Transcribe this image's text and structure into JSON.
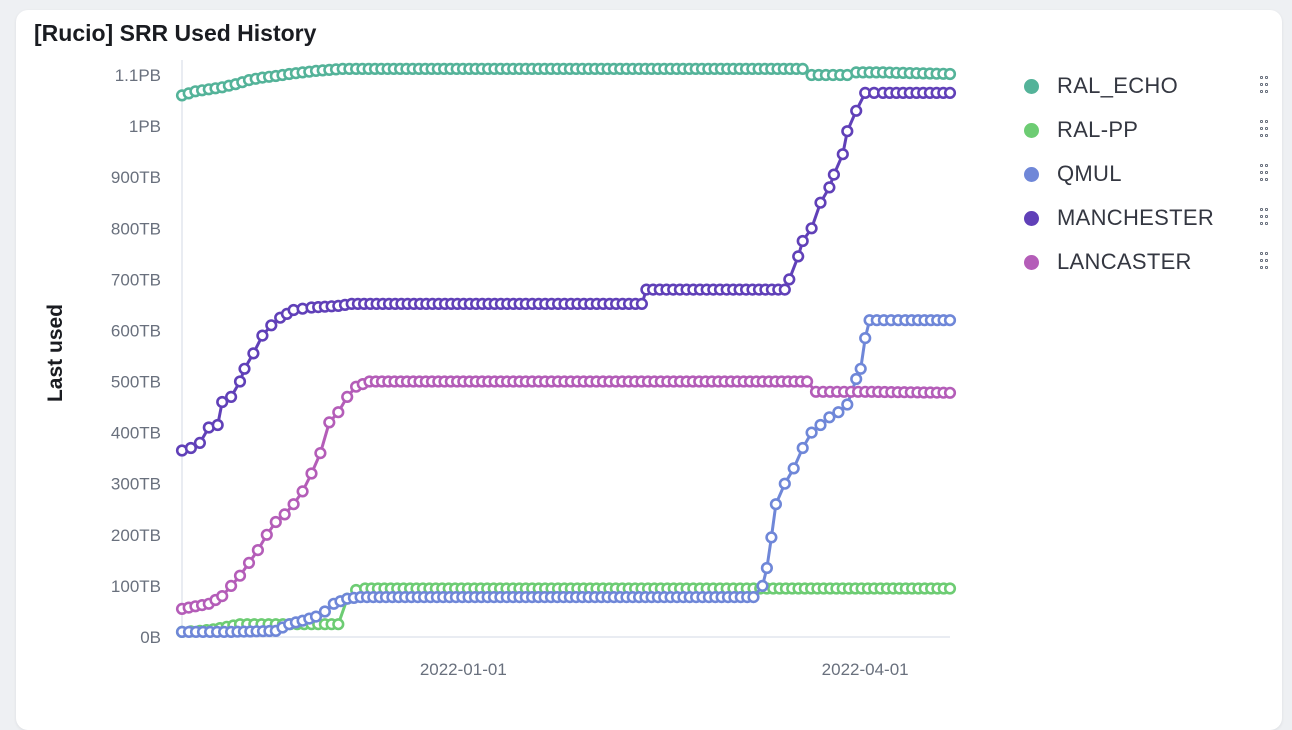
{
  "panel": {
    "title": "[Rucio] SRR Used History"
  },
  "chart_data": {
    "type": "line",
    "title": "[Rucio] SRR Used History",
    "xlabel": "",
    "ylabel": "Last used",
    "y_unit": "TB",
    "ylim": [
      0,
      1100
    ],
    "y_ticks": [
      0,
      100,
      200,
      300,
      400,
      500,
      600,
      700,
      800,
      900,
      1000,
      1100
    ],
    "y_tick_labels": [
      "0B",
      "100TB",
      "200TB",
      "300TB",
      "400TB",
      "500TB",
      "600TB",
      "700TB",
      "800TB",
      "900TB",
      "1PB",
      "1.1PB"
    ],
    "x_ticks": [
      "2022-01-01",
      "2022-04-01"
    ],
    "xlim": [
      "2021-10-30",
      "2022-04-20"
    ],
    "grid": false,
    "legend_position": "right",
    "markers": "hollow-circle",
    "series": [
      {
        "name": "RAL_ECHO",
        "color": "#54b399",
        "points": [
          [
            "2021-10-30",
            1060
          ],
          [
            "2021-11-02",
            1068
          ],
          [
            "2021-11-05",
            1072
          ],
          [
            "2021-11-08",
            1076
          ],
          [
            "2021-11-11",
            1082
          ],
          [
            "2021-11-14",
            1090
          ],
          [
            "2021-11-17",
            1095
          ],
          [
            "2021-11-20",
            1098
          ],
          [
            "2021-11-23",
            1102
          ],
          [
            "2021-11-26",
            1105
          ],
          [
            "2021-11-29",
            1108
          ],
          [
            "2021-12-02",
            1110
          ],
          [
            "2021-12-05",
            1112
          ],
          [
            "2021-12-08",
            1112
          ],
          [
            "2022-01-15",
            1112
          ],
          [
            "2022-02-15",
            1112
          ],
          [
            "2022-03-18",
            1112
          ],
          [
            "2022-03-20",
            1100
          ],
          [
            "2022-03-28",
            1100
          ],
          [
            "2022-03-30",
            1105
          ],
          [
            "2022-04-05",
            1105
          ],
          [
            "2022-04-20",
            1102
          ]
        ]
      },
      {
        "name": "RAL-PP",
        "color": "#6dcc73",
        "points": [
          [
            "2021-10-30",
            10
          ],
          [
            "2021-11-03",
            12
          ],
          [
            "2021-11-06",
            15
          ],
          [
            "2021-11-09",
            20
          ],
          [
            "2021-11-12",
            25
          ],
          [
            "2021-11-20",
            25
          ],
          [
            "2021-11-28",
            25
          ],
          [
            "2021-12-04",
            25
          ],
          [
            "2021-12-06",
            75
          ],
          [
            "2021-12-08",
            92
          ],
          [
            "2021-12-10",
            95
          ],
          [
            "2022-01-15",
            95
          ],
          [
            "2022-02-20",
            95
          ],
          [
            "2022-03-10",
            95
          ],
          [
            "2022-04-20",
            95
          ]
        ]
      },
      {
        "name": "QMUL",
        "color": "#6f87d8",
        "points": [
          [
            "2021-10-30",
            10
          ],
          [
            "2021-11-10",
            10
          ],
          [
            "2021-11-20",
            12
          ],
          [
            "2021-11-23",
            25
          ],
          [
            "2021-11-26",
            32
          ],
          [
            "2021-11-29",
            40
          ],
          [
            "2021-12-01",
            50
          ],
          [
            "2021-12-03",
            65
          ],
          [
            "2021-12-06",
            75
          ],
          [
            "2021-12-09",
            78
          ],
          [
            "2022-01-15",
            78
          ],
          [
            "2022-02-15",
            78
          ],
          [
            "2022-03-07",
            78
          ],
          [
            "2022-03-09",
            100
          ],
          [
            "2022-03-10",
            135
          ],
          [
            "2022-03-11",
            195
          ],
          [
            "2022-03-12",
            260
          ],
          [
            "2022-03-14",
            300
          ],
          [
            "2022-03-16",
            330
          ],
          [
            "2022-03-18",
            370
          ],
          [
            "2022-03-20",
            400
          ],
          [
            "2022-03-22",
            415
          ],
          [
            "2022-03-24",
            430
          ],
          [
            "2022-03-26",
            440
          ],
          [
            "2022-03-28",
            455
          ],
          [
            "2022-03-30",
            505
          ],
          [
            "2022-03-31",
            525
          ],
          [
            "2022-04-01",
            585
          ],
          [
            "2022-04-02",
            620
          ],
          [
            "2022-04-10",
            620
          ],
          [
            "2022-04-20",
            620
          ]
        ]
      },
      {
        "name": "MANCHESTER",
        "color": "#6040b8",
        "points": [
          [
            "2021-10-30",
            365
          ],
          [
            "2021-11-01",
            370
          ],
          [
            "2021-11-03",
            380
          ],
          [
            "2021-11-05",
            410
          ],
          [
            "2021-11-07",
            415
          ],
          [
            "2021-11-08",
            460
          ],
          [
            "2021-11-10",
            470
          ],
          [
            "2021-11-12",
            500
          ],
          [
            "2021-11-13",
            525
          ],
          [
            "2021-11-15",
            555
          ],
          [
            "2021-11-17",
            590
          ],
          [
            "2021-11-19",
            610
          ],
          [
            "2021-11-21",
            625
          ],
          [
            "2021-11-24",
            640
          ],
          [
            "2021-11-28",
            645
          ],
          [
            "2021-12-04",
            648
          ],
          [
            "2021-12-07",
            652
          ],
          [
            "2022-01-15",
            652
          ],
          [
            "2022-02-10",
            652
          ],
          [
            "2022-02-11",
            680
          ],
          [
            "2022-03-01",
            680
          ],
          [
            "2022-03-14",
            680
          ],
          [
            "2022-03-15",
            700
          ],
          [
            "2022-03-17",
            745
          ],
          [
            "2022-03-18",
            775
          ],
          [
            "2022-03-20",
            800
          ],
          [
            "2022-03-22",
            850
          ],
          [
            "2022-03-24",
            880
          ],
          [
            "2022-03-25",
            905
          ],
          [
            "2022-03-27",
            945
          ],
          [
            "2022-03-28",
            990
          ],
          [
            "2022-03-30",
            1030
          ],
          [
            "2022-04-01",
            1065
          ],
          [
            "2022-04-05",
            1065
          ],
          [
            "2022-04-20",
            1065
          ]
        ]
      },
      {
        "name": "LANCASTER",
        "color": "#b45db8",
        "points": [
          [
            "2021-10-30",
            55
          ],
          [
            "2021-11-02",
            60
          ],
          [
            "2021-11-05",
            65
          ],
          [
            "2021-11-08",
            80
          ],
          [
            "2021-11-10",
            100
          ],
          [
            "2021-11-12",
            120
          ],
          [
            "2021-11-14",
            145
          ],
          [
            "2021-11-16",
            170
          ],
          [
            "2021-11-18",
            200
          ],
          [
            "2021-11-20",
            225
          ],
          [
            "2021-11-22",
            240
          ],
          [
            "2021-11-24",
            260
          ],
          [
            "2021-11-26",
            285
          ],
          [
            "2021-11-28",
            320
          ],
          [
            "2021-11-30",
            360
          ],
          [
            "2021-12-02",
            420
          ],
          [
            "2021-12-04",
            440
          ],
          [
            "2021-12-06",
            470
          ],
          [
            "2021-12-08",
            490
          ],
          [
            "2021-12-11",
            500
          ],
          [
            "2022-01-15",
            500
          ],
          [
            "2022-02-20",
            500
          ],
          [
            "2022-03-19",
            500
          ],
          [
            "2022-03-21",
            480
          ],
          [
            "2022-04-01",
            480
          ],
          [
            "2022-04-20",
            478
          ]
        ]
      }
    ]
  }
}
